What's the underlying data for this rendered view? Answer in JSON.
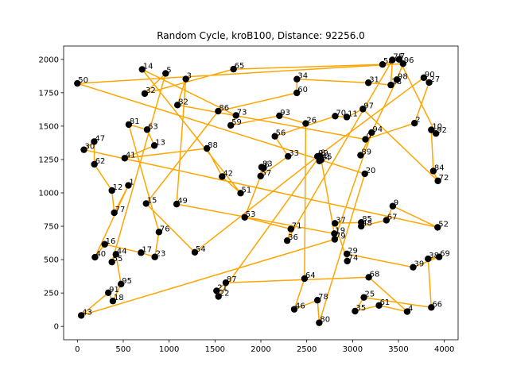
{
  "chart_data": {
    "type": "scatter",
    "title": "Random Cycle, kroB100, Distance: 92256.0",
    "xlabel": "",
    "ylabel": "",
    "xlim": [
      -150,
      4150
    ],
    "ylim": [
      -100,
      2100
    ],
    "xticks": [
      0,
      500,
      1000,
      1500,
      2000,
      2500,
      3000,
      3500,
      4000
    ],
    "yticks": [
      0,
      250,
      500,
      750,
      1000,
      1250,
      1500,
      1750,
      2000
    ],
    "grid": false,
    "colors": {
      "point": "#000000",
      "path": "#ffa500"
    },
    "points": [
      {
        "id": "0",
        "x": 3140,
        "y": 1401
      },
      {
        "id": "1",
        "x": 556,
        "y": 1056
      },
      {
        "id": "2",
        "x": 3675,
        "y": 1522
      },
      {
        "id": "3",
        "x": 1182,
        "y": 1853
      },
      {
        "id": "4",
        "x": 3595,
        "y": 111
      },
      {
        "id": "5",
        "x": 962,
        "y": 1895
      },
      {
        "id": "6",
        "x": 2030,
        "y": 1186
      },
      {
        "id": "7",
        "x": 3507,
        "y": 2000
      },
      {
        "id": "8",
        "x": 2642,
        "y": 1277
      },
      {
        "id": "9",
        "x": 3438,
        "y": 901
      },
      {
        "id": "10",
        "x": 3858,
        "y": 1472
      },
      {
        "id": "11",
        "x": 2937,
        "y": 1568
      },
      {
        "id": "12",
        "x": 376,
        "y": 1018
      },
      {
        "id": "13",
        "x": 839,
        "y": 1355
      },
      {
        "id": "14",
        "x": 706,
        "y": 1925
      },
      {
        "id": "15",
        "x": 749,
        "y": 920
      },
      {
        "id": "16",
        "x": 298,
        "y": 615
      },
      {
        "id": "17",
        "x": 694,
        "y": 552
      },
      {
        "id": "18",
        "x": 387,
        "y": 190
      },
      {
        "id": "19",
        "x": 2801,
        "y": 695
      },
      {
        "id": "20",
        "x": 3133,
        "y": 1143
      },
      {
        "id": "21",
        "x": 1517,
        "y": 266
      },
      {
        "id": "22",
        "x": 1538,
        "y": 224
      },
      {
        "id": "23",
        "x": 844,
        "y": 520
      },
      {
        "id": "24",
        "x": 2639,
        "y": 1239
      },
      {
        "id": "25",
        "x": 3123,
        "y": 217
      },
      {
        "id": "26",
        "x": 2489,
        "y": 1520
      },
      {
        "id": "27",
        "x": 3834,
        "y": 1827
      },
      {
        "id": "28",
        "x": 3417,
        "y": 1808
      },
      {
        "id": "29",
        "x": 2938,
        "y": 543
      },
      {
        "id": "30",
        "x": 71,
        "y": 1323
      },
      {
        "id": "31",
        "x": 3172,
        "y": 1825
      },
      {
        "id": "32",
        "x": 734,
        "y": 1744
      },
      {
        "id": "33",
        "x": 2297,
        "y": 1274
      },
      {
        "id": "34",
        "x": 2393,
        "y": 1852
      },
      {
        "id": "35",
        "x": 3027,
        "y": 114
      },
      {
        "id": "36",
        "x": 2287,
        "y": 642
      },
      {
        "id": "37",
        "x": 2808,
        "y": 772
      },
      {
        "id": "38",
        "x": 3823,
        "y": 506
      },
      {
        "id": "39",
        "x": 3660,
        "y": 443
      },
      {
        "id": "40",
        "x": 192,
        "y": 518
      },
      {
        "id": "41",
        "x": 516,
        "y": 1260
      },
      {
        "id": "42",
        "x": 1578,
        "y": 1122
      },
      {
        "id": "43",
        "x": 42,
        "y": 82
      },
      {
        "id": "44",
        "x": 420,
        "y": 540
      },
      {
        "id": "45",
        "x": 2658,
        "y": 1248
      },
      {
        "id": "46",
        "x": 2364,
        "y": 128
      },
      {
        "id": "47",
        "x": 183,
        "y": 1384
      },
      {
        "id": "48",
        "x": 3094,
        "y": 750
      },
      {
        "id": "49",
        "x": 1082,
        "y": 916
      },
      {
        "id": "50",
        "x": 0,
        "y": 1820
      },
      {
        "id": "51",
        "x": 1779,
        "y": 998
      },
      {
        "id": "52",
        "x": 3927,
        "y": 742
      },
      {
        "id": "53",
        "x": 1824,
        "y": 817
      },
      {
        "id": "54",
        "x": 1280,
        "y": 555
      },
      {
        "id": "55",
        "x": 376,
        "y": 482
      },
      {
        "id": "56",
        "x": 2153,
        "y": 1424
      },
      {
        "id": "57",
        "x": 1997,
        "y": 1126
      },
      {
        "id": "58",
        "x": 3326,
        "y": 1962
      },
      {
        "id": "59",
        "x": 1672,
        "y": 1506
      },
      {
        "id": "60",
        "x": 2392,
        "y": 1749
      },
      {
        "id": "61",
        "x": 3288,
        "y": 157
      },
      {
        "id": "62",
        "x": 185,
        "y": 1214
      },
      {
        "id": "63",
        "x": 760,
        "y": 1474
      },
      {
        "id": "64",
        "x": 2476,
        "y": 358
      },
      {
        "id": "65",
        "x": 1702,
        "y": 1927
      },
      {
        "id": "66",
        "x": 3858,
        "y": 142
      },
      {
        "id": "67",
        "x": 3368,
        "y": 795
      },
      {
        "id": "68",
        "x": 3176,
        "y": 368
      },
      {
        "id": "69",
        "x": 3943,
        "y": 520
      },
      {
        "id": "70",
        "x": 2810,
        "y": 1575
      },
      {
        "id": "71",
        "x": 2327,
        "y": 729
      },
      {
        "id": "72",
        "x": 3930,
        "y": 1090
      },
      {
        "id": "73",
        "x": 1729,
        "y": 1580
      },
      {
        "id": "74",
        "x": 2942,
        "y": 489
      },
      {
        "id": "75",
        "x": 3434,
        "y": 1996
      },
      {
        "id": "76",
        "x": 889,
        "y": 707
      },
      {
        "id": "77",
        "x": 402,
        "y": 851
      },
      {
        "id": "78",
        "x": 2617,
        "y": 196
      },
      {
        "id": "79",
        "x": 2805,
        "y": 652
      },
      {
        "id": "80",
        "x": 2636,
        "y": 27
      },
      {
        "id": "81",
        "x": 560,
        "y": 1512
      },
      {
        "id": "82",
        "x": 1091,
        "y": 1658
      },
      {
        "id": "83",
        "x": 2008,
        "y": 1193
      },
      {
        "id": "84",
        "x": 3880,
        "y": 1164
      },
      {
        "id": "85",
        "x": 3094,
        "y": 779
      },
      {
        "id": "86",
        "x": 1535,
        "y": 1612
      },
      {
        "id": "87",
        "x": 1618,
        "y": 327
      },
      {
        "id": "88",
        "x": 1412,
        "y": 1333
      },
      {
        "id": "89",
        "x": 3087,
        "y": 1282
      },
      {
        "id": "90",
        "x": 3776,
        "y": 1863
      },
      {
        "id": "91",
        "x": 337,
        "y": 252
      },
      {
        "id": "92",
        "x": 3909,
        "y": 1445
      },
      {
        "id": "93",
        "x": 2202,
        "y": 1578
      },
      {
        "id": "94",
        "x": 3208,
        "y": 1452
      },
      {
        "id": "95",
        "x": 476,
        "y": 317
      },
      {
        "id": "96",
        "x": 3550,
        "y": 1968
      },
      {
        "id": "97",
        "x": 3112,
        "y": 1628
      },
      {
        "id": "98",
        "x": 3483,
        "y": 1848
      },
      {
        "id": "99",
        "x": 2617,
        "y": 1273
      }
    ],
    "tour": [
      "43",
      "91",
      "18",
      "95",
      "44",
      "55",
      "5",
      "32",
      "65",
      "58",
      "7",
      "92",
      "10",
      "84",
      "72",
      "97",
      "11",
      "70",
      "56",
      "33",
      "57",
      "83",
      "6",
      "53",
      "71",
      "36",
      "75",
      "28",
      "31",
      "34",
      "60",
      "86",
      "15",
      "54",
      "99",
      "90",
      "27",
      "2",
      "0",
      "82",
      "3",
      "49",
      "19",
      "45",
      "24",
      "8",
      "22",
      "21",
      "87",
      "68",
      "4",
      "61",
      "35",
      "25",
      "66",
      "38",
      "69",
      "39",
      "29",
      "74",
      "37",
      "85",
      "48",
      "67",
      "9",
      "52",
      "30",
      "47",
      "62",
      "12",
      "77",
      "1",
      "40",
      "16",
      "17",
      "23",
      "76",
      "81",
      "63",
      "13",
      "41",
      "88",
      "42",
      "51",
      "14",
      "73",
      "59",
      "93",
      "26",
      "64",
      "46",
      "78",
      "80",
      "20",
      "50",
      "96",
      "98",
      "89",
      "94",
      "79",
      "43"
    ]
  }
}
